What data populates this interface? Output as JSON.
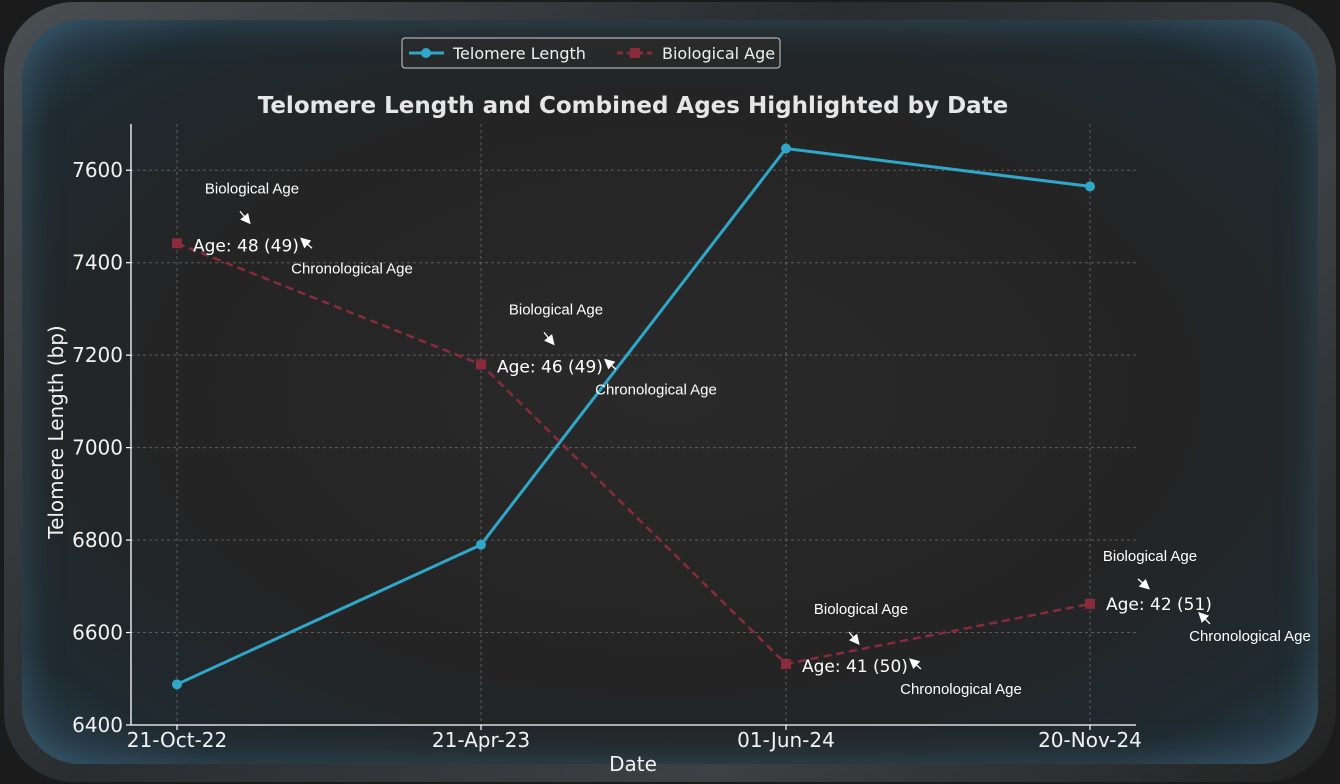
{
  "chart_data": {
    "type": "line",
    "title": "Telomere Length and Combined Ages Highlighted by Date",
    "xlabel": "Date",
    "ylabel": "Telomere Length (bp)",
    "categories": [
      "21-Oct-22",
      "21-Apr-23",
      "01-Jun-24",
      "20-Nov-24"
    ],
    "ylim": [
      6400,
      7700
    ],
    "yticks": [
      6400,
      6600,
      6800,
      7000,
      7200,
      7400,
      7600
    ],
    "grid": true,
    "legend_position": "top-center",
    "series": [
      {
        "name": "Telomere Length",
        "values": [
          6488,
          6790,
          7647,
          7565
        ],
        "color": "#2fa7c9",
        "marker": "circle",
        "style": "solid"
      },
      {
        "name": "Biological Age",
        "values": [
          7442,
          7180,
          6532,
          6662
        ],
        "color": "#8b2a3a",
        "marker": "square",
        "style": "dashed"
      }
    ],
    "annotations": [
      {
        "text": "Age: 48 (49)",
        "bio_label": "Biological Age",
        "chrono_label": "Chronological Age"
      },
      {
        "text": "Age: 46 (49)",
        "bio_label": "Biological Age",
        "chrono_label": "Chronological Age"
      },
      {
        "text": "Age: 41 (50)",
        "bio_label": "Biological Age",
        "chrono_label": "Chronological Age"
      },
      {
        "text": "Age: 42 (51)",
        "bio_label": "Biological Age",
        "chrono_label": "Chronological Age"
      }
    ]
  }
}
